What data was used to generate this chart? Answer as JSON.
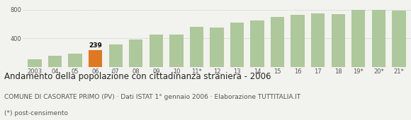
{
  "categories": [
    "2003",
    "04",
    "05",
    "06",
    "07",
    "08",
    "09",
    "10",
    "11*",
    "12",
    "13",
    "14",
    "15",
    "16",
    "17",
    "18",
    "19*",
    "20*",
    "21*"
  ],
  "values": [
    105,
    160,
    190,
    239,
    315,
    385,
    450,
    455,
    560,
    550,
    620,
    645,
    695,
    730,
    745,
    740,
    800,
    795,
    790
  ],
  "bar_colors": [
    "#adc89a",
    "#adc89a",
    "#adc89a",
    "#e07820",
    "#adc89a",
    "#adc89a",
    "#adc89a",
    "#adc89a",
    "#adc89a",
    "#adc89a",
    "#adc89a",
    "#adc89a",
    "#adc89a",
    "#adc89a",
    "#adc89a",
    "#adc89a",
    "#adc89a",
    "#adc89a",
    "#adc89a"
  ],
  "highlight_index": 3,
  "highlight_label": "239",
  "ylim": [
    0,
    900
  ],
  "yticks": [
    0,
    400,
    800
  ],
  "grid_color": "#cccccc",
  "title": "Andamento della popolazione con cittadinanza straniera - 2006",
  "subtitle": "COMUNE DI CASORATE PRIMO (PV) · Dati ISTAT 1° gennaio 2006 · Elaborazione TUTTITALIA.IT",
  "footnote": "(*) post-censimento",
  "title_fontsize": 8.5,
  "subtitle_fontsize": 6.5,
  "footnote_fontsize": 6.5,
  "tick_fontsize": 6,
  "background_color": "#f2f2ee"
}
